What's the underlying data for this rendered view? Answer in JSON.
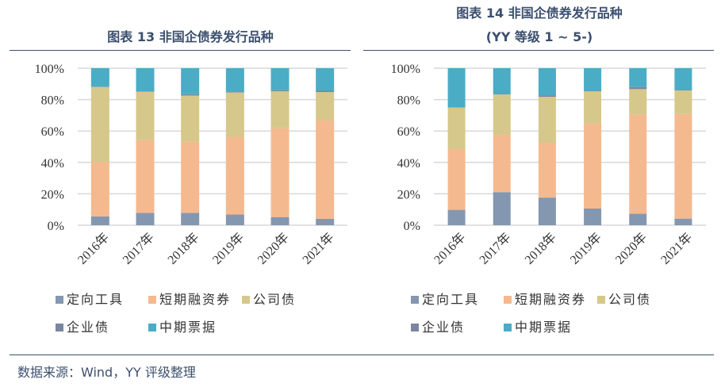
{
  "charts": [
    {
      "title": "图表 13 非国企债券发行品种",
      "subtitle": ""
    },
    {
      "title": "图表 14 非国企债券发行品种",
      "subtitle": "(YY 等级 1 ~ 5-)"
    }
  ],
  "source": "数据来源：Wind，YY 评级整理",
  "chart_data": [
    {
      "type": "bar",
      "stacked": true,
      "title": "图表 13 非国企债券发行品种",
      "categories": [
        "2016年",
        "2017年",
        "2018年",
        "2019年",
        "2020年",
        "2021年"
      ],
      "yticks": [
        "0%",
        "20%",
        "40%",
        "60%",
        "80%",
        "100%"
      ],
      "ylim": [
        0,
        100
      ],
      "grid": true,
      "legend": "bottom",
      "series": [
        {
          "name": "定向工具",
          "color": "#8497b0",
          "values": [
            5.6,
            7.8,
            7.8,
            6.8,
            5.2,
            4.1
          ]
        },
        {
          "name": "短期融资券",
          "color": "#f4b98f",
          "values": [
            34.6,
            46.3,
            45.4,
            49.5,
            56.5,
            62.8
          ]
        },
        {
          "name": "公司债",
          "color": "#d6c78b",
          "values": [
            47.8,
            30.9,
            29.4,
            28.2,
            23.6,
            17.9
          ]
        },
        {
          "name": "企业债",
          "color": "#7a869e",
          "values": [
            0.3,
            0.3,
            0.8,
            0.3,
            0.7,
            0.8
          ]
        },
        {
          "name": "中期票据",
          "color": "#4bacc6",
          "values": [
            11.7,
            14.7,
            16.6,
            15.2,
            14.0,
            14.4
          ]
        }
      ]
    },
    {
      "type": "bar",
      "stacked": true,
      "title": "图表 14 非国企债券发行品种 (YY 等级 1 ~ 5-)",
      "categories": [
        "2016年",
        "2017年",
        "2018年",
        "2019年",
        "2020年",
        "2021年"
      ],
      "yticks": [
        "0%",
        "20%",
        "40%",
        "60%",
        "80%",
        "100%"
      ],
      "ylim": [
        0,
        100
      ],
      "grid": true,
      "legend": "bottom",
      "series": [
        {
          "name": "定向工具",
          "color": "#8497b0",
          "values": [
            9.8,
            21.1,
            17.6,
            10.6,
            7.3,
            4.2
          ]
        },
        {
          "name": "短期融资券",
          "color": "#f4b98f",
          "values": [
            38.7,
            36.5,
            34.9,
            54.1,
            63.1,
            66.6
          ]
        },
        {
          "name": "公司债",
          "color": "#d6c78b",
          "values": [
            26.5,
            25.7,
            29.3,
            20.6,
            16.3,
            15.0
          ]
        },
        {
          "name": "企业债",
          "color": "#7a869e",
          "values": [
            0,
            0.3,
            0.8,
            0.3,
            1.3,
            0.3
          ]
        },
        {
          "name": "中期票据",
          "color": "#4bacc6",
          "values": [
            25.0,
            16.4,
            17.4,
            14.4,
            12.0,
            13.9
          ]
        }
      ]
    }
  ]
}
